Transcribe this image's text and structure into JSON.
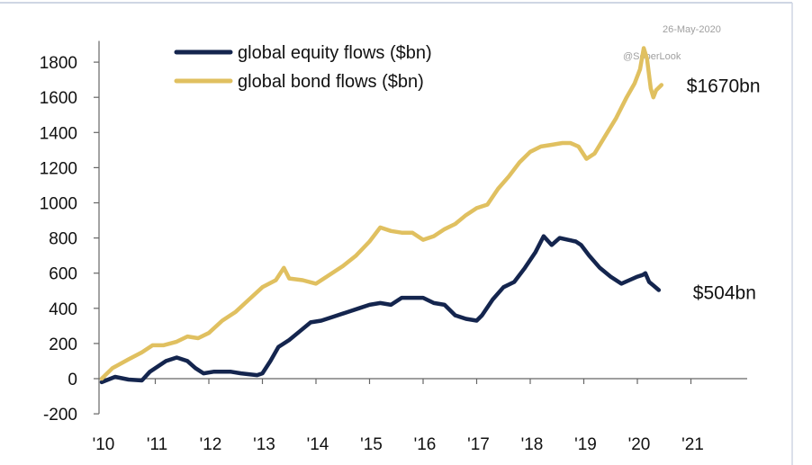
{
  "header": {
    "date": "26-May-2020",
    "watermark": "@SoberLook"
  },
  "chart_data": {
    "type": "line",
    "title": "",
    "xlabel": "",
    "ylabel": "",
    "ylim": [
      -200,
      1900
    ],
    "xlim": [
      2010,
      2021.9
    ],
    "yticks": [
      -200,
      0,
      200,
      400,
      600,
      800,
      1000,
      1200,
      1400,
      1600,
      1800
    ],
    "xticks": [
      {
        "value": 2010,
        "label": "'10"
      },
      {
        "value": 2011,
        "label": "'11"
      },
      {
        "value": 2012,
        "label": "'12"
      },
      {
        "value": 2013,
        "label": "'13"
      },
      {
        "value": 2014,
        "label": "'14"
      },
      {
        "value": 2015,
        "label": "'15"
      },
      {
        "value": 2016,
        "label": "'16"
      },
      {
        "value": 2017,
        "label": "'17"
      },
      {
        "value": 2018,
        "label": "'18"
      },
      {
        "value": 2019,
        "label": "'19"
      },
      {
        "value": 2020,
        "label": "'20"
      },
      {
        "value": 2021,
        "label": "'21"
      }
    ],
    "legend_position": "top-left",
    "grid": false,
    "series": [
      {
        "name": "global equity flows ($bn)",
        "color": "#14254e",
        "end_label": "$504bn",
        "points": [
          [
            2010.0,
            -20
          ],
          [
            2010.25,
            10
          ],
          [
            2010.5,
            -5
          ],
          [
            2010.75,
            -10
          ],
          [
            2010.9,
            40
          ],
          [
            2011.2,
            100
          ],
          [
            2011.4,
            120
          ],
          [
            2011.6,
            100
          ],
          [
            2011.75,
            60
          ],
          [
            2011.9,
            30
          ],
          [
            2012.1,
            40
          ],
          [
            2012.4,
            40
          ],
          [
            2012.6,
            30
          ],
          [
            2012.75,
            25
          ],
          [
            2012.9,
            20
          ],
          [
            2013.0,
            30
          ],
          [
            2013.15,
            100
          ],
          [
            2013.3,
            180
          ],
          [
            2013.5,
            220
          ],
          [
            2013.7,
            270
          ],
          [
            2013.9,
            320
          ],
          [
            2014.1,
            330
          ],
          [
            2014.3,
            350
          ],
          [
            2014.6,
            380
          ],
          [
            2014.8,
            400
          ],
          [
            2015.0,
            420
          ],
          [
            2015.2,
            430
          ],
          [
            2015.4,
            420
          ],
          [
            2015.6,
            460
          ],
          [
            2015.8,
            460
          ],
          [
            2016.0,
            460
          ],
          [
            2016.2,
            430
          ],
          [
            2016.4,
            420
          ],
          [
            2016.6,
            360
          ],
          [
            2016.8,
            340
          ],
          [
            2017.0,
            330
          ],
          [
            2017.1,
            360
          ],
          [
            2017.3,
            450
          ],
          [
            2017.5,
            520
          ],
          [
            2017.7,
            550
          ],
          [
            2017.9,
            630
          ],
          [
            2018.1,
            720
          ],
          [
            2018.25,
            810
          ],
          [
            2018.4,
            760
          ],
          [
            2018.55,
            800
          ],
          [
            2018.7,
            790
          ],
          [
            2018.85,
            780
          ],
          [
            2018.95,
            760
          ],
          [
            2019.1,
            700
          ],
          [
            2019.3,
            630
          ],
          [
            2019.5,
            580
          ],
          [
            2019.7,
            540
          ],
          [
            2019.85,
            560
          ],
          [
            2020.0,
            580
          ],
          [
            2020.1,
            590
          ],
          [
            2020.15,
            600
          ],
          [
            2020.22,
            550
          ],
          [
            2020.3,
            530
          ],
          [
            2020.4,
            504
          ]
        ]
      },
      {
        "name": "global bond flows ($bn)",
        "color": "#e0c060",
        "end_label": "$1670bn",
        "points": [
          [
            2010.0,
            0
          ],
          [
            2010.2,
            60
          ],
          [
            2010.5,
            110
          ],
          [
            2010.75,
            150
          ],
          [
            2010.95,
            190
          ],
          [
            2011.15,
            190
          ],
          [
            2011.4,
            210
          ],
          [
            2011.6,
            240
          ],
          [
            2011.8,
            230
          ],
          [
            2012.0,
            260
          ],
          [
            2012.25,
            330
          ],
          [
            2012.5,
            380
          ],
          [
            2012.75,
            450
          ],
          [
            2013.0,
            520
          ],
          [
            2013.25,
            560
          ],
          [
            2013.4,
            630
          ],
          [
            2013.5,
            570
          ],
          [
            2013.75,
            560
          ],
          [
            2014.0,
            540
          ],
          [
            2014.2,
            580
          ],
          [
            2014.5,
            640
          ],
          [
            2014.75,
            700
          ],
          [
            2015.0,
            780
          ],
          [
            2015.2,
            860
          ],
          [
            2015.4,
            840
          ],
          [
            2015.6,
            830
          ],
          [
            2015.8,
            830
          ],
          [
            2016.0,
            790
          ],
          [
            2016.2,
            810
          ],
          [
            2016.4,
            850
          ],
          [
            2016.6,
            880
          ],
          [
            2016.8,
            930
          ],
          [
            2017.0,
            970
          ],
          [
            2017.2,
            990
          ],
          [
            2017.4,
            1080
          ],
          [
            2017.6,
            1150
          ],
          [
            2017.8,
            1230
          ],
          [
            2018.0,
            1290
          ],
          [
            2018.2,
            1320
          ],
          [
            2018.4,
            1330
          ],
          [
            2018.6,
            1340
          ],
          [
            2018.75,
            1340
          ],
          [
            2018.9,
            1320
          ],
          [
            2019.05,
            1250
          ],
          [
            2019.2,
            1280
          ],
          [
            2019.4,
            1380
          ],
          [
            2019.6,
            1480
          ],
          [
            2019.8,
            1600
          ],
          [
            2019.95,
            1680
          ],
          [
            2020.05,
            1760
          ],
          [
            2020.12,
            1880
          ],
          [
            2020.18,
            1820
          ],
          [
            2020.25,
            1650
          ],
          [
            2020.3,
            1600
          ],
          [
            2020.35,
            1640
          ],
          [
            2020.45,
            1670
          ]
        ]
      }
    ]
  }
}
